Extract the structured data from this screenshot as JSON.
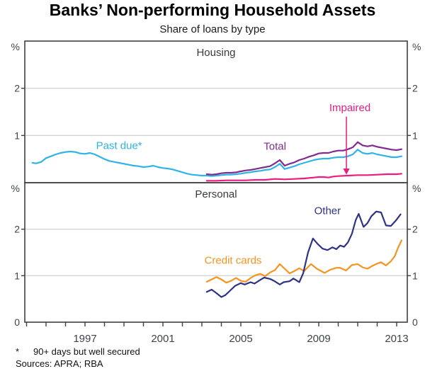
{
  "title": "Banks’ Non-performing Household Assets",
  "subtitle": "Share of loans by type",
  "footnotes": {
    "marker": "*",
    "text": "90+ days but well secured",
    "sources": "Sources: APRA; RBA"
  },
  "colors": {
    "axis": "#3f3f3f",
    "grid": "#cbcbcb",
    "tick_text": "#3e444c",
    "panel_label": "#3a3a3a"
  },
  "x_axis": {
    "tick_start_year": 1994,
    "tick_end_year": 2013,
    "labels": [
      "1997",
      "2001",
      "2005",
      "2009",
      "2013"
    ],
    "label_years": [
      1997,
      2001,
      2005,
      2009,
      2013
    ]
  },
  "chart_data": [
    {
      "type": "line",
      "panel_label": "Housing",
      "unit": "%",
      "ylim": [
        0,
        3
      ],
      "yticks": [
        1,
        2
      ],
      "grid": true,
      "show_zero_label": false,
      "series": [
        {
          "name": "Past due*",
          "color": "#2FB3E6",
          "label": {
            "year": 1998.75,
            "value": 0.79
          },
          "points": [
            [
              1994.3,
              0.42
            ],
            [
              1994.5,
              0.41
            ],
            [
              1994.75,
              0.44
            ],
            [
              1995.0,
              0.52
            ],
            [
              1995.25,
              0.56
            ],
            [
              1995.5,
              0.6
            ],
            [
              1995.75,
              0.63
            ],
            [
              1996.0,
              0.65
            ],
            [
              1996.25,
              0.66
            ],
            [
              1996.5,
              0.65
            ],
            [
              1996.75,
              0.62
            ],
            [
              1997.0,
              0.61
            ],
            [
              1997.25,
              0.63
            ],
            [
              1997.5,
              0.6
            ],
            [
              1997.75,
              0.55
            ],
            [
              1998.0,
              0.5
            ],
            [
              1998.25,
              0.46
            ],
            [
              1998.5,
              0.44
            ],
            [
              1998.75,
              0.42
            ],
            [
              1999.0,
              0.4
            ],
            [
              1999.25,
              0.38
            ],
            [
              1999.5,
              0.36
            ],
            [
              1999.75,
              0.35
            ],
            [
              2000.0,
              0.33
            ],
            [
              2000.25,
              0.34
            ],
            [
              2000.5,
              0.36
            ],
            [
              2000.75,
              0.33
            ],
            [
              2001.0,
              0.31
            ],
            [
              2001.25,
              0.3
            ],
            [
              2001.5,
              0.28
            ],
            [
              2001.75,
              0.25
            ],
            [
              2002.0,
              0.22
            ],
            [
              2002.25,
              0.19
            ],
            [
              2002.5,
              0.17
            ],
            [
              2002.75,
              0.16
            ],
            [
              2003.0,
              0.15
            ],
            [
              2003.25,
              0.15
            ],
            [
              2003.5,
              0.14
            ],
            [
              2003.75,
              0.15
            ],
            [
              2004.0,
              0.16
            ],
            [
              2004.25,
              0.17
            ],
            [
              2004.5,
              0.17
            ],
            [
              2004.75,
              0.18
            ],
            [
              2005.0,
              0.19
            ],
            [
              2005.25,
              0.21
            ],
            [
              2005.5,
              0.22
            ],
            [
              2005.75,
              0.24
            ],
            [
              2006.0,
              0.25
            ],
            [
              2006.25,
              0.27
            ],
            [
              2006.5,
              0.28
            ],
            [
              2006.75,
              0.33
            ],
            [
              2007.0,
              0.4
            ],
            [
              2007.25,
              0.29
            ],
            [
              2007.5,
              0.32
            ],
            [
              2007.75,
              0.35
            ],
            [
              2008.0,
              0.39
            ],
            [
              2008.25,
              0.42
            ],
            [
              2008.5,
              0.45
            ],
            [
              2008.75,
              0.48
            ],
            [
              2009.0,
              0.5
            ],
            [
              2009.25,
              0.51
            ],
            [
              2009.5,
              0.51
            ],
            [
              2009.75,
              0.53
            ],
            [
              2010.0,
              0.54
            ],
            [
              2010.25,
              0.54
            ],
            [
              2010.5,
              0.56
            ],
            [
              2010.75,
              0.6
            ],
            [
              2011.0,
              0.7
            ],
            [
              2011.25,
              0.63
            ],
            [
              2011.5,
              0.61
            ],
            [
              2011.75,
              0.63
            ],
            [
              2012.0,
              0.6
            ],
            [
              2012.25,
              0.58
            ],
            [
              2012.5,
              0.56
            ],
            [
              2012.75,
              0.54
            ],
            [
              2013.0,
              0.54
            ],
            [
              2013.25,
              0.56
            ]
          ]
        },
        {
          "name": "Total",
          "color": "#7F2C8F",
          "label": {
            "year": 2006.75,
            "value": 0.77
          },
          "points": [
            [
              2003.25,
              0.18
            ],
            [
              2003.5,
              0.17
            ],
            [
              2003.75,
              0.18
            ],
            [
              2004.0,
              0.2
            ],
            [
              2004.25,
              0.21
            ],
            [
              2004.5,
              0.21
            ],
            [
              2004.75,
              0.22
            ],
            [
              2005.0,
              0.24
            ],
            [
              2005.25,
              0.26
            ],
            [
              2005.5,
              0.27
            ],
            [
              2005.75,
              0.29
            ],
            [
              2006.0,
              0.31
            ],
            [
              2006.25,
              0.33
            ],
            [
              2006.5,
              0.35
            ],
            [
              2006.75,
              0.41
            ],
            [
              2007.0,
              0.48
            ],
            [
              2007.25,
              0.36
            ],
            [
              2007.5,
              0.4
            ],
            [
              2007.75,
              0.43
            ],
            [
              2008.0,
              0.48
            ],
            [
              2008.25,
              0.51
            ],
            [
              2008.5,
              0.55
            ],
            [
              2008.75,
              0.58
            ],
            [
              2009.0,
              0.62
            ],
            [
              2009.25,
              0.63
            ],
            [
              2009.5,
              0.63
            ],
            [
              2009.75,
              0.66
            ],
            [
              2010.0,
              0.68
            ],
            [
              2010.25,
              0.68
            ],
            [
              2010.5,
              0.71
            ],
            [
              2010.75,
              0.75
            ],
            [
              2011.0,
              0.86
            ],
            [
              2011.25,
              0.79
            ],
            [
              2011.5,
              0.77
            ],
            [
              2011.75,
              0.79
            ],
            [
              2012.0,
              0.76
            ],
            [
              2012.25,
              0.74
            ],
            [
              2012.5,
              0.72
            ],
            [
              2012.75,
              0.7
            ],
            [
              2013.0,
              0.69
            ],
            [
              2013.25,
              0.71
            ]
          ]
        },
        {
          "name": "Impaired",
          "color": "#ED1A7F",
          "label": {
            "year": 2010.6,
            "value": 1.59
          },
          "arrow": {
            "year": 2010.42,
            "from_value": 1.4,
            "to_value": 0.3,
            "tip_value": 0.17
          },
          "points": [
            [
              2003.25,
              0.04
            ],
            [
              2003.75,
              0.04
            ],
            [
              2004.25,
              0.05
            ],
            [
              2004.75,
              0.05
            ],
            [
              2005.25,
              0.05
            ],
            [
              2005.75,
              0.06
            ],
            [
              2006.25,
              0.06
            ],
            [
              2006.75,
              0.08
            ],
            [
              2007.25,
              0.07
            ],
            [
              2007.75,
              0.08
            ],
            [
              2008.25,
              0.09
            ],
            [
              2008.75,
              0.11
            ],
            [
              2009.0,
              0.12
            ],
            [
              2009.25,
              0.12
            ],
            [
              2009.5,
              0.11
            ],
            [
              2009.75,
              0.13
            ],
            [
              2010.0,
              0.14
            ],
            [
              2010.5,
              0.15
            ],
            [
              2011.0,
              0.16
            ],
            [
              2011.5,
              0.16
            ],
            [
              2012.0,
              0.17
            ],
            [
              2012.5,
              0.18
            ],
            [
              2013.0,
              0.18
            ],
            [
              2013.25,
              0.19
            ]
          ]
        }
      ]
    },
    {
      "type": "line",
      "panel_label": "Personal",
      "unit": "%",
      "ylim": [
        0,
        3
      ],
      "yticks": [
        1,
        2
      ],
      "grid": true,
      "show_zero_label": true,
      "series": [
        {
          "name": "Credit cards",
          "color": "#F79420",
          "label": {
            "year": 2004.6,
            "value": 1.33
          },
          "points": [
            [
              2003.25,
              0.87
            ],
            [
              2003.5,
              0.92
            ],
            [
              2003.75,
              0.97
            ],
            [
              2004.0,
              0.92
            ],
            [
              2004.25,
              0.85
            ],
            [
              2004.5,
              0.89
            ],
            [
              2004.75,
              0.95
            ],
            [
              2005.0,
              0.89
            ],
            [
              2005.25,
              0.87
            ],
            [
              2005.5,
              0.95
            ],
            [
              2005.75,
              1.01
            ],
            [
              2006.0,
              1.04
            ],
            [
              2006.25,
              0.99
            ],
            [
              2006.5,
              1.07
            ],
            [
              2006.75,
              1.12
            ],
            [
              2007.0,
              1.25
            ],
            [
              2007.25,
              1.15
            ],
            [
              2007.5,
              1.05
            ],
            [
              2007.75,
              1.1
            ],
            [
              2008.0,
              1.16
            ],
            [
              2008.25,
              1.1
            ],
            [
              2008.6,
              1.25
            ],
            [
              2008.9,
              1.15
            ],
            [
              2009.3,
              1.06
            ],
            [
              2009.6,
              1.13
            ],
            [
              2009.9,
              1.17
            ],
            [
              2010.1,
              1.17
            ],
            [
              2010.4,
              1.11
            ],
            [
              2010.7,
              1.23
            ],
            [
              2011.0,
              1.25
            ],
            [
              2011.25,
              1.18
            ],
            [
              2011.5,
              1.15
            ],
            [
              2011.75,
              1.21
            ],
            [
              2012.0,
              1.26
            ],
            [
              2012.2,
              1.29
            ],
            [
              2012.45,
              1.22
            ],
            [
              2012.7,
              1.31
            ],
            [
              2012.9,
              1.42
            ],
            [
              2013.05,
              1.58
            ],
            [
              2013.25,
              1.76
            ]
          ]
        },
        {
          "name": "Other",
          "color": "#2F3388",
          "label": {
            "year": 2009.45,
            "value": 2.4
          },
          "points": [
            [
              2003.25,
              0.65
            ],
            [
              2003.5,
              0.7
            ],
            [
              2003.7,
              0.64
            ],
            [
              2004.0,
              0.54
            ],
            [
              2004.2,
              0.58
            ],
            [
              2004.5,
              0.7
            ],
            [
              2004.7,
              0.78
            ],
            [
              2005.0,
              0.84
            ],
            [
              2005.2,
              0.81
            ],
            [
              2005.5,
              0.86
            ],
            [
              2005.7,
              0.83
            ],
            [
              2006.0,
              0.91
            ],
            [
              2006.2,
              0.96
            ],
            [
              2006.5,
              0.93
            ],
            [
              2006.7,
              0.89
            ],
            [
              2007.0,
              0.81
            ],
            [
              2007.2,
              0.86
            ],
            [
              2007.5,
              0.88
            ],
            [
              2007.7,
              0.94
            ],
            [
              2008.0,
              0.86
            ],
            [
              2008.2,
              1.05
            ],
            [
              2008.45,
              1.5
            ],
            [
              2008.7,
              1.8
            ],
            [
              2008.95,
              1.68
            ],
            [
              2009.2,
              1.58
            ],
            [
              2009.45,
              1.55
            ],
            [
              2009.7,
              1.61
            ],
            [
              2009.9,
              1.57
            ],
            [
              2010.1,
              1.65
            ],
            [
              2010.3,
              1.62
            ],
            [
              2010.5,
              1.72
            ],
            [
              2010.7,
              1.9
            ],
            [
              2010.9,
              2.2
            ],
            [
              2011.05,
              2.33
            ],
            [
              2011.3,
              2.05
            ],
            [
              2011.5,
              2.13
            ],
            [
              2011.7,
              2.28
            ],
            [
              2011.95,
              2.38
            ],
            [
              2012.2,
              2.36
            ],
            [
              2012.45,
              2.08
            ],
            [
              2012.7,
              2.07
            ],
            [
              2012.95,
              2.18
            ],
            [
              2013.2,
              2.32
            ]
          ]
        }
      ]
    }
  ]
}
